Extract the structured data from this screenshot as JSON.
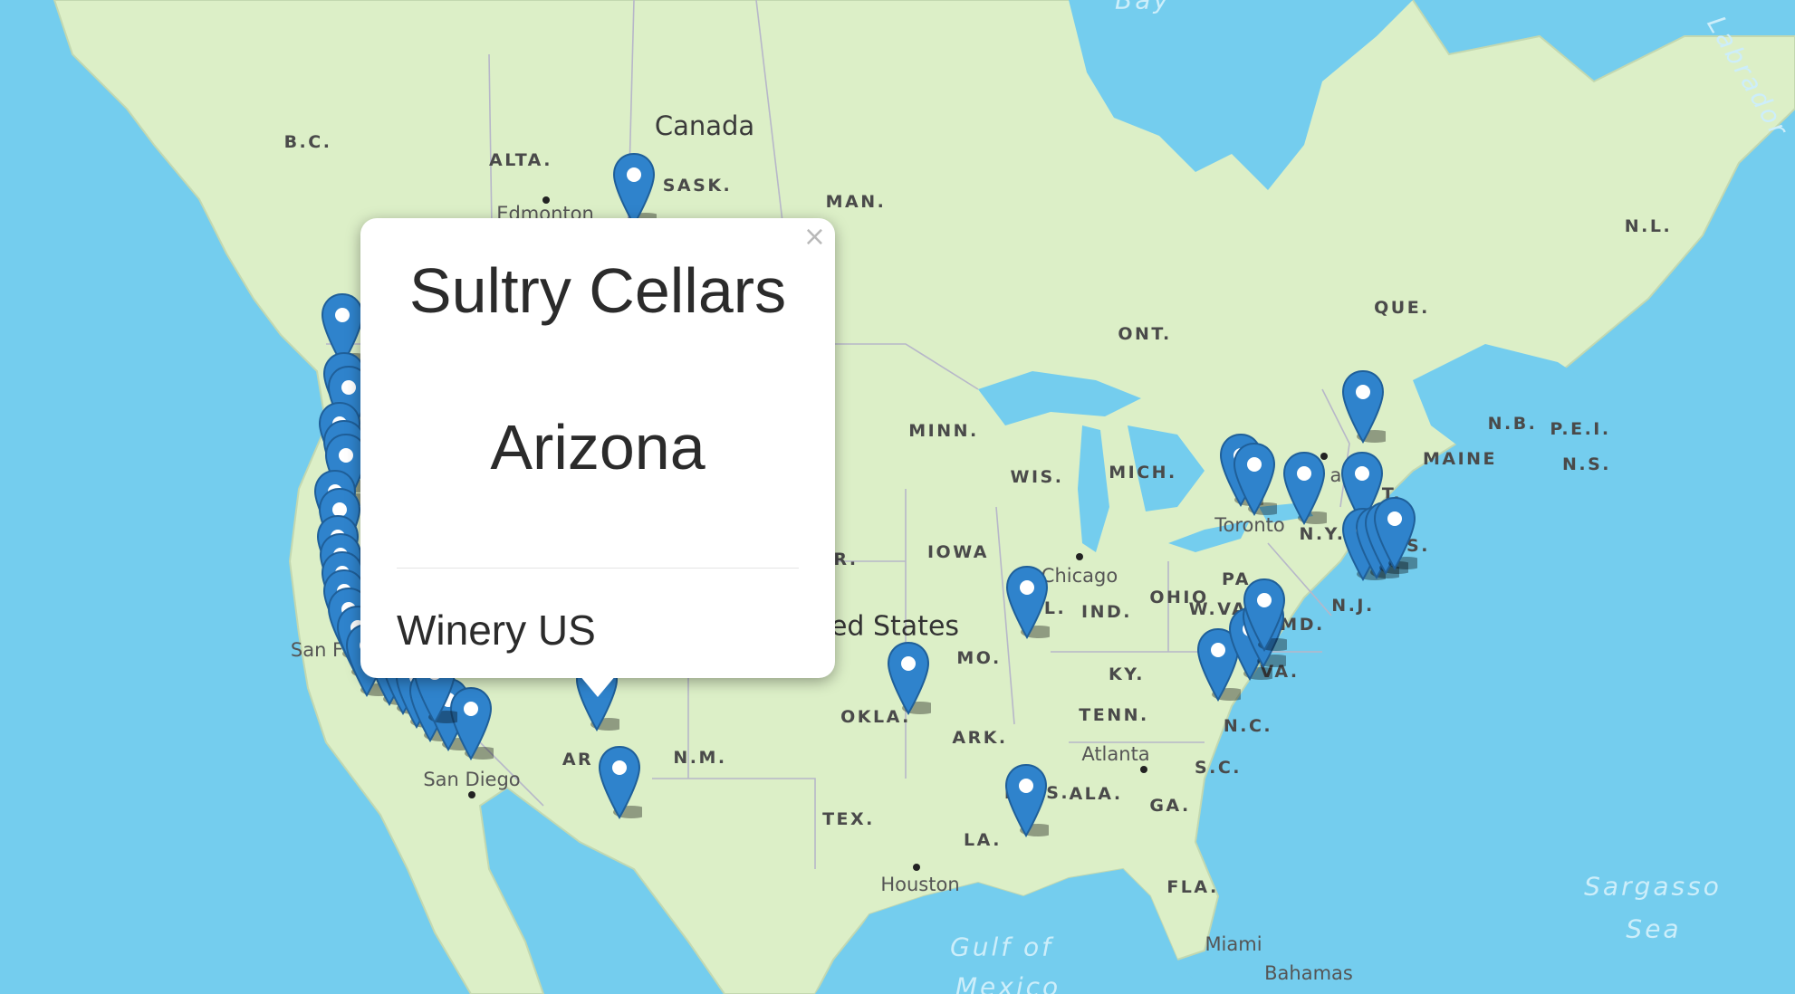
{
  "map": {
    "labels": [
      {
        "text": "Canada",
        "cls": "country"
      },
      {
        "text": "ed States",
        "cls": "big"
      },
      {
        "text": "B.C.",
        "cls": "region"
      },
      {
        "text": "ALTA.",
        "cls": "region"
      },
      {
        "text": "SASK.",
        "cls": "region"
      },
      {
        "text": "MAN.",
        "cls": "region"
      },
      {
        "text": "ONT.",
        "cls": "region"
      },
      {
        "text": "QUE.",
        "cls": "region"
      },
      {
        "text": "N.L.",
        "cls": "region"
      },
      {
        "text": "N.B.",
        "cls": "region"
      },
      {
        "text": "P.E.I.",
        "cls": "region"
      },
      {
        "text": "N.S.",
        "cls": "region"
      },
      {
        "text": "MAINE",
        "cls": "region"
      },
      {
        "text": "MINN.",
        "cls": "region"
      },
      {
        "text": "WIS.",
        "cls": "region"
      },
      {
        "text": "MICH.",
        "cls": "region"
      },
      {
        "text": "IOWA",
        "cls": "region"
      },
      {
        "text": "R.",
        "cls": "region"
      },
      {
        "text": "L.",
        "cls": "region"
      },
      {
        "text": "IND.",
        "cls": "region"
      },
      {
        "text": "OHIO",
        "cls": "region"
      },
      {
        "text": "PA.",
        "cls": "region"
      },
      {
        "text": "MD.",
        "cls": "region"
      },
      {
        "text": "N.J.",
        "cls": "region"
      },
      {
        "text": "N.Y.",
        "cls": "region"
      },
      {
        "text": "T.",
        "cls": "region"
      },
      {
        "text": "S.",
        "cls": "region"
      },
      {
        "text": "W.VA.",
        "cls": "region"
      },
      {
        "text": "VA.",
        "cls": "region"
      },
      {
        "text": "KY.",
        "cls": "region"
      },
      {
        "text": "MO.",
        "cls": "region"
      },
      {
        "text": "OKLA.",
        "cls": "region"
      },
      {
        "text": "ARK.",
        "cls": "region"
      },
      {
        "text": "TENN.",
        "cls": "region"
      },
      {
        "text": "N.C.",
        "cls": "region"
      },
      {
        "text": "S.C.",
        "cls": "region"
      },
      {
        "text": "GA.",
        "cls": "region"
      },
      {
        "text": "ALA.",
        "cls": "region"
      },
      {
        "text": "MISS.",
        "cls": "region"
      },
      {
        "text": "LA.",
        "cls": "region"
      },
      {
        "text": "TEX.",
        "cls": "region"
      },
      {
        "text": "N.M.",
        "cls": "region"
      },
      {
        "text": "AR",
        "cls": "region"
      },
      {
        "text": "FLA.",
        "cls": "region"
      },
      {
        "text": "Edmonton",
        "cls": "city"
      },
      {
        "text": "Chicago",
        "cls": "city"
      },
      {
        "text": "Toronto",
        "cls": "city"
      },
      {
        "text": "awa",
        "cls": "city"
      },
      {
        "text": "Atlanta",
        "cls": "city"
      },
      {
        "text": "Houston",
        "cls": "city"
      },
      {
        "text": "Miami",
        "cls": "city"
      },
      {
        "text": "San Diego",
        "cls": "city"
      },
      {
        "text": "San F",
        "cls": "city"
      },
      {
        "text": "Bahamas",
        "cls": "city"
      },
      {
        "text": "Gulf of",
        "cls": "water"
      },
      {
        "text": "Mexico",
        "cls": "water"
      },
      {
        "text": "Sargasso",
        "cls": "water"
      },
      {
        "text": "Sea",
        "cls": "water"
      },
      {
        "text": "Labrador",
        "cls": "water"
      },
      {
        "text": "Bay",
        "cls": "water"
      }
    ]
  },
  "popup": {
    "title": "Sultry Cellars",
    "state": "Arizona",
    "footer": "Winery US",
    "close": "×"
  }
}
